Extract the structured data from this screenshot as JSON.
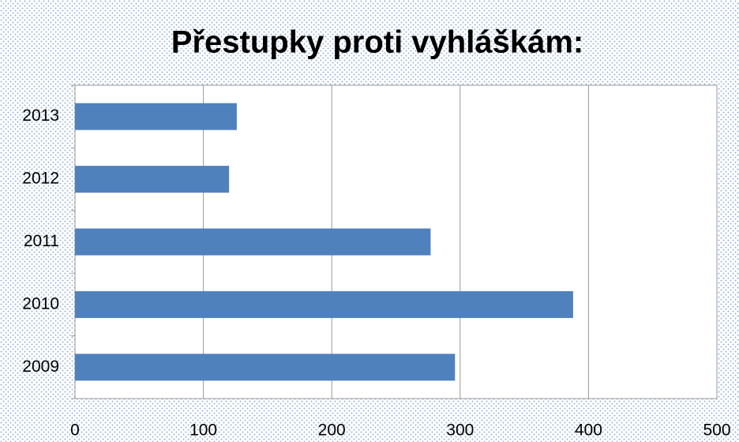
{
  "chart_data": {
    "type": "bar",
    "orientation": "horizontal",
    "title": "Přestupky proti vyhláškám:",
    "categories": [
      "2009",
      "2010",
      "2011",
      "2012",
      "2013"
    ],
    "values": [
      296,
      388,
      277,
      120,
      126
    ],
    "color": "#4f81bd",
    "xlim": [
      0,
      500
    ],
    "xticks": [
      0,
      100,
      200,
      300,
      400,
      500
    ],
    "grid": true
  }
}
